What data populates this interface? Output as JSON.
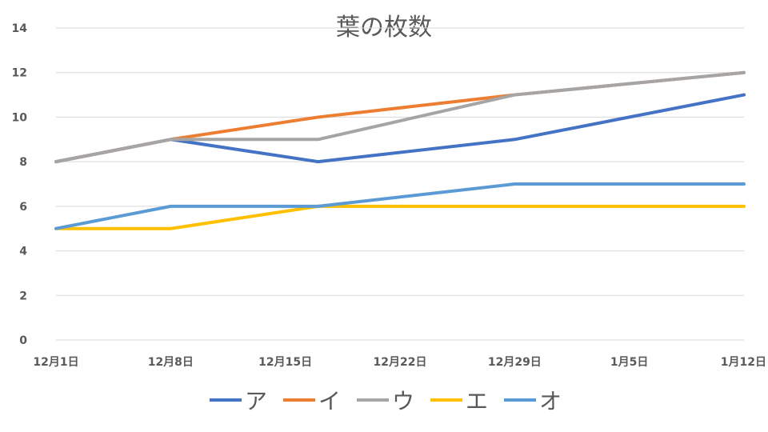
{
  "chart_data": {
    "type": "line",
    "title": "葉の枚数",
    "xlabel": "",
    "ylabel": "",
    "x_dates": [
      "2019-12-01",
      "2019-12-08",
      "2019-12-17",
      "2019-12-29",
      "2020-01-12"
    ],
    "x_tick_labels": [
      "12月1日",
      "12月8日",
      "12月15日",
      "12月22日",
      "12月29日",
      "1月5日",
      "1月12日"
    ],
    "x_tick_dates": [
      "2019-12-01",
      "2019-12-08",
      "2019-12-15",
      "2019-12-22",
      "2019-12-29",
      "2020-01-05",
      "2020-01-12"
    ],
    "xlim": [
      "2019-12-01",
      "2020-01-12"
    ],
    "ylim": [
      0,
      14
    ],
    "y_ticks": [
      0,
      2,
      4,
      6,
      8,
      10,
      12,
      14
    ],
    "grid": true,
    "legend_position": "bottom",
    "series": [
      {
        "name": "ア",
        "color": "#4472C4",
        "values": [
          8,
          9,
          8,
          9,
          11
        ]
      },
      {
        "name": "イ",
        "color": "#ED7D31",
        "values": [
          8,
          9,
          10,
          11,
          12
        ]
      },
      {
        "name": "ウ",
        "color": "#A5A5A5",
        "values": [
          8,
          9,
          9,
          11,
          12
        ]
      },
      {
        "name": "エ",
        "color": "#FFC000",
        "values": [
          5,
          5,
          6,
          6,
          6
        ]
      },
      {
        "name": "オ",
        "color": "#5B9BD5",
        "values": [
          5,
          6,
          6,
          7,
          7
        ]
      }
    ]
  }
}
